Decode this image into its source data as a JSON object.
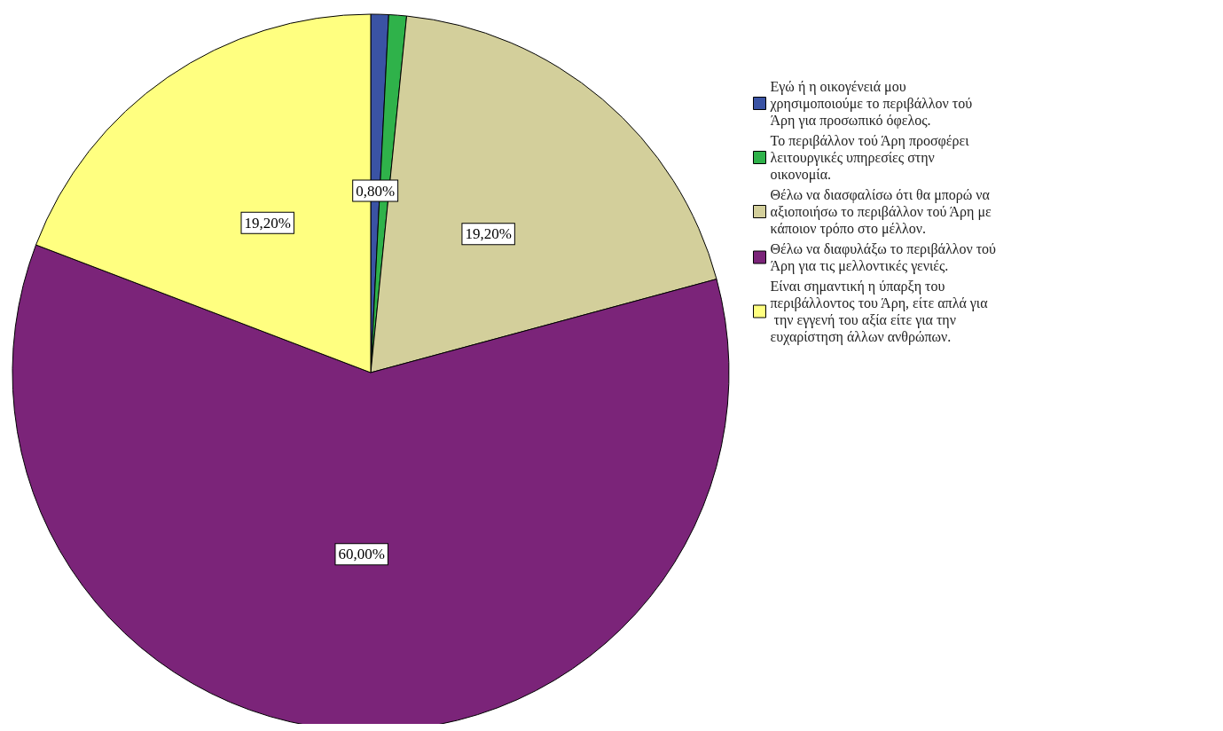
{
  "chart_data": {
    "type": "pie",
    "categories": [
      "Εγώ ή η οικογένειά μου χρησιμοποιούμε το περιβάλλον τού Άρη για προσωπικό όφελος.",
      "Το περιβάλλον τού Άρη προσφέρει λειτουργικές υπηρεσίες στην οικονομία.",
      "Θέλω να διασφαλίσω ότι θα μπορώ να αξιοποιήσω το περιβάλλον τού Άρη με κάποιον τρόπο στο μέλλον.",
      "Θέλω να διαφυλάξω το περιβάλλον τού Άρη για τις μελλοντικές γενιές.",
      "Είναι σημαντική η ύπαρξη του περιβάλλοντος του Άρη, είτε απλά για την εγγενή του αξία είτε για την ευχαρίστηση άλλων ανθρώπων."
    ],
    "values": [
      0.8,
      0.8,
      19.2,
      60.0,
      19.2
    ],
    "colors": [
      "#3a53a4",
      "#2fb24a",
      "#d3cf9b",
      "#7b2479",
      "#ffff80"
    ],
    "value_labels": [
      "0,80%",
      null,
      "19,20%",
      "60,00%",
      "19,20%"
    ],
    "legend": "right"
  }
}
